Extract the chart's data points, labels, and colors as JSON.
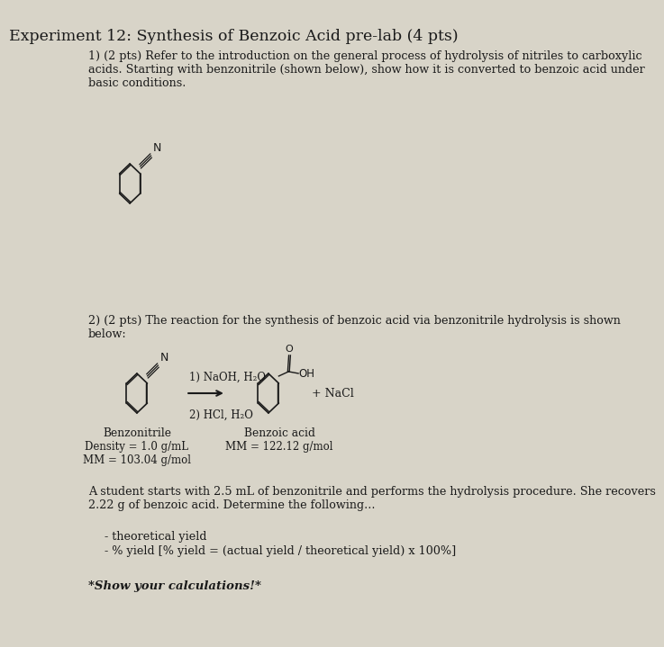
{
  "title": "Experiment 12: Synthesis of Benzoic Acid pre-lab (4 pts)",
  "bg_color": "#d8d4c8",
  "text_color": "#1a1a1a",
  "q1_text": "1) (2 pts) Refer to the introduction on the general process of hydrolysis of nitriles to carboxylic\nacids. Starting with benzonitrile (shown below), show how it is converted to benzoic acid under\nbasic conditions.",
  "q2_text": "2) (2 pts) The reaction for the synthesis of benzoic acid via benzonitrile hydrolysis is shown\nbelow:",
  "reaction_label1": "1) NaOH, H₂O",
  "reaction_label2": "2) HCl, H₂O",
  "benz_name": "Benzonitrile",
  "benz_density": "Density = 1.0 g/mL",
  "benz_mm": "MM = 103.04 g/mol",
  "ba_name": "Benzoic acid",
  "ba_mm": "MM = 122.12 g/mol",
  "nacl_label": "+ NaCl",
  "student_text": "A student starts with 2.5 mL of benzonitrile and performs the hydrolysis procedure. She recovers\n2.22 g of benzoic acid. Determine the following...",
  "bullet1": "- theoretical yield",
  "bullet2": "- % yield [% yield = (actual yield / theoretical yield) x 100%]",
  "show_calc": "*Show your calculations!*"
}
